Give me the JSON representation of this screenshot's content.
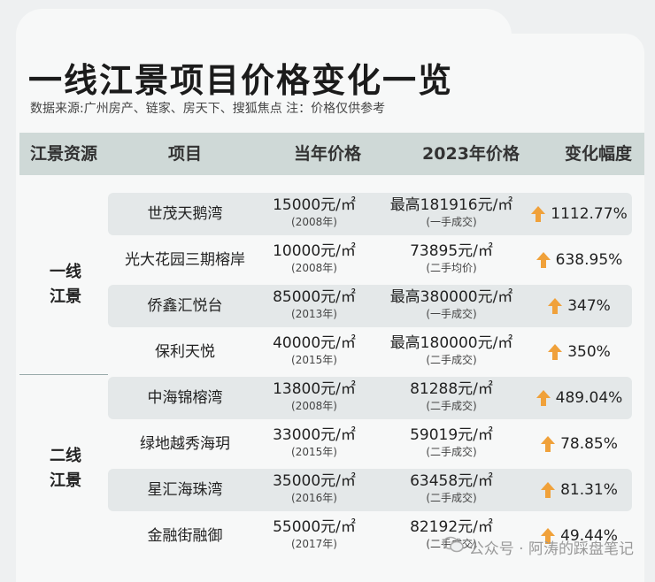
{
  "title": "一线江景项目价格变化一览",
  "source": "数据来源:广州房产、链家、房天下、搜狐焦点  注：价格仅供参考",
  "headers": {
    "resource": "江景资源",
    "project": "项目",
    "price_then": "当年价格",
    "price_2023": "2023年价格",
    "change": "变化幅度"
  },
  "groups": [
    {
      "label_line1": "一线",
      "label_line2": "江景"
    },
    {
      "label_line1": "二线",
      "label_line2": "江景"
    }
  ],
  "rows": [
    {
      "name": "世茂天鹅湾",
      "price": "15000元/㎡",
      "year": "(2008年)",
      "price2023": "最高181916元/㎡",
      "note": "(一手成交)",
      "change": "1112.77%"
    },
    {
      "name": "光大花园三期榕岸",
      "price": "10000元/㎡",
      "year": "(2008年)",
      "price2023": "73895元/㎡",
      "note": "(二手均价)",
      "change": "638.95%"
    },
    {
      "name": "侨鑫汇悦台",
      "price": "85000元/㎡",
      "year": "(2013年)",
      "price2023": "最高380000元/㎡",
      "note": "(一手成交)",
      "change": "347%"
    },
    {
      "name": "保利天悦",
      "price": "40000元/㎡",
      "year": "(2015年)",
      "price2023": "最高180000元/㎡",
      "note": "(二手成交)",
      "change": "350%"
    },
    {
      "name": "中海锦榕湾",
      "price": "13800元/㎡",
      "year": "(2008年)",
      "price2023": "81288元/㎡",
      "note": "(二手成交)",
      "change": "489.04%"
    },
    {
      "name": "绿地越秀海玥",
      "price": "33000元/㎡",
      "year": "(2015年)",
      "price2023": "59019元/㎡",
      "note": "(二手成交)",
      "change": "78.85%"
    },
    {
      "name": "星汇海珠湾",
      "price": "35000元/㎡",
      "year": "(2016年)",
      "price2023": "63458元/㎡",
      "note": "(二手成交)",
      "change": "81.31%"
    },
    {
      "name": "金融街融御",
      "price": "55000元/㎡",
      "year": "(2017年)",
      "price2023": "82192元/㎡",
      "note": "(二手成交)",
      "change": "49.44%"
    }
  ],
  "watermark": "公众号 · 阿涛的踩盘笔记",
  "colors": {
    "header_bg": "#cfd9d7",
    "row_shade": "#e4e8e9",
    "arrow": "#f0a13a"
  }
}
